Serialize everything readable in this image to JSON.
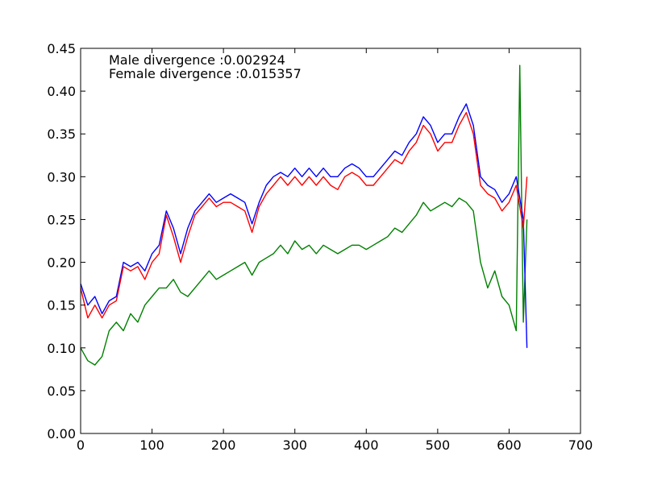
{
  "chart_data": {
    "type": "line",
    "title": "",
    "xlabel": "",
    "ylabel": "",
    "xlim": [
      0,
      700
    ],
    "ylim": [
      0,
      0.45
    ],
    "grid": false,
    "x_ticks": [
      "0",
      "100",
      "200",
      "300",
      "400",
      "500",
      "600",
      "700"
    ],
    "y_ticks": [
      "0.00",
      "0.05",
      "0.10",
      "0.15",
      "0.20",
      "0.25",
      "0.30",
      "0.35",
      "0.40",
      "0.45"
    ],
    "annotations": [
      "Male divergence :0.002924",
      "Female divergence :0.015357"
    ],
    "series": [
      {
        "color": "#0000ff",
        "x": [
          0,
          10,
          20,
          30,
          40,
          50,
          60,
          70,
          80,
          90,
          100,
          110,
          120,
          130,
          140,
          150,
          160,
          170,
          180,
          190,
          200,
          210,
          220,
          230,
          240,
          250,
          260,
          270,
          280,
          290,
          300,
          310,
          320,
          330,
          340,
          350,
          360,
          370,
          380,
          390,
          400,
          410,
          420,
          430,
          440,
          450,
          460,
          470,
          480,
          490,
          500,
          510,
          520,
          530,
          540,
          550,
          560,
          570,
          580,
          590,
          600,
          610,
          620,
          625
        ],
        "y": [
          0.175,
          0.15,
          0.16,
          0.14,
          0.155,
          0.16,
          0.2,
          0.195,
          0.2,
          0.19,
          0.21,
          0.22,
          0.26,
          0.24,
          0.21,
          0.24,
          0.26,
          0.27,
          0.28,
          0.27,
          0.275,
          0.28,
          0.275,
          0.27,
          0.245,
          0.27,
          0.29,
          0.3,
          0.305,
          0.3,
          0.31,
          0.3,
          0.31,
          0.3,
          0.31,
          0.3,
          0.3,
          0.31,
          0.315,
          0.31,
          0.3,
          0.3,
          0.31,
          0.32,
          0.33,
          0.325,
          0.34,
          0.35,
          0.37,
          0.36,
          0.34,
          0.35,
          0.35,
          0.37,
          0.385,
          0.36,
          0.3,
          0.29,
          0.285,
          0.27,
          0.28,
          0.3,
          0.25,
          0.1
        ]
      },
      {
        "color": "#ff0000",
        "x": [
          0,
          10,
          20,
          30,
          40,
          50,
          60,
          70,
          80,
          90,
          100,
          110,
          120,
          130,
          140,
          150,
          160,
          170,
          180,
          190,
          200,
          210,
          220,
          230,
          240,
          250,
          260,
          270,
          280,
          290,
          300,
          310,
          320,
          330,
          340,
          350,
          360,
          370,
          380,
          390,
          400,
          410,
          420,
          430,
          440,
          450,
          460,
          470,
          480,
          490,
          500,
          510,
          520,
          530,
          540,
          550,
          560,
          570,
          580,
          590,
          600,
          610,
          620,
          625
        ],
        "y": [
          0.17,
          0.135,
          0.15,
          0.135,
          0.15,
          0.155,
          0.195,
          0.19,
          0.195,
          0.18,
          0.2,
          0.21,
          0.255,
          0.23,
          0.2,
          0.23,
          0.255,
          0.265,
          0.275,
          0.265,
          0.27,
          0.27,
          0.265,
          0.26,
          0.235,
          0.265,
          0.28,
          0.29,
          0.3,
          0.29,
          0.3,
          0.29,
          0.3,
          0.29,
          0.3,
          0.29,
          0.285,
          0.3,
          0.305,
          0.3,
          0.29,
          0.29,
          0.3,
          0.31,
          0.32,
          0.315,
          0.33,
          0.34,
          0.36,
          0.35,
          0.33,
          0.34,
          0.34,
          0.36,
          0.375,
          0.35,
          0.29,
          0.28,
          0.275,
          0.26,
          0.27,
          0.29,
          0.24,
          0.3
        ]
      },
      {
        "color": "#008000",
        "x": [
          0,
          10,
          20,
          30,
          40,
          50,
          60,
          70,
          80,
          90,
          100,
          110,
          120,
          130,
          140,
          150,
          160,
          170,
          180,
          190,
          200,
          210,
          220,
          230,
          240,
          250,
          260,
          270,
          280,
          290,
          300,
          310,
          320,
          330,
          340,
          350,
          360,
          370,
          380,
          390,
          400,
          410,
          420,
          430,
          440,
          450,
          460,
          470,
          480,
          490,
          500,
          510,
          520,
          530,
          540,
          550,
          560,
          570,
          580,
          590,
          600,
          610,
          615,
          620,
          625
        ],
        "y": [
          0.1,
          0.085,
          0.08,
          0.09,
          0.12,
          0.13,
          0.12,
          0.14,
          0.13,
          0.15,
          0.16,
          0.17,
          0.17,
          0.18,
          0.165,
          0.16,
          0.17,
          0.18,
          0.19,
          0.18,
          0.185,
          0.19,
          0.195,
          0.2,
          0.185,
          0.2,
          0.205,
          0.21,
          0.22,
          0.21,
          0.225,
          0.215,
          0.22,
          0.21,
          0.22,
          0.215,
          0.21,
          0.215,
          0.22,
          0.22,
          0.215,
          0.22,
          0.225,
          0.23,
          0.24,
          0.235,
          0.245,
          0.255,
          0.27,
          0.26,
          0.265,
          0.27,
          0.265,
          0.275,
          0.27,
          0.26,
          0.2,
          0.17,
          0.19,
          0.16,
          0.15,
          0.12,
          0.43,
          0.13,
          0.25
        ]
      }
    ]
  }
}
